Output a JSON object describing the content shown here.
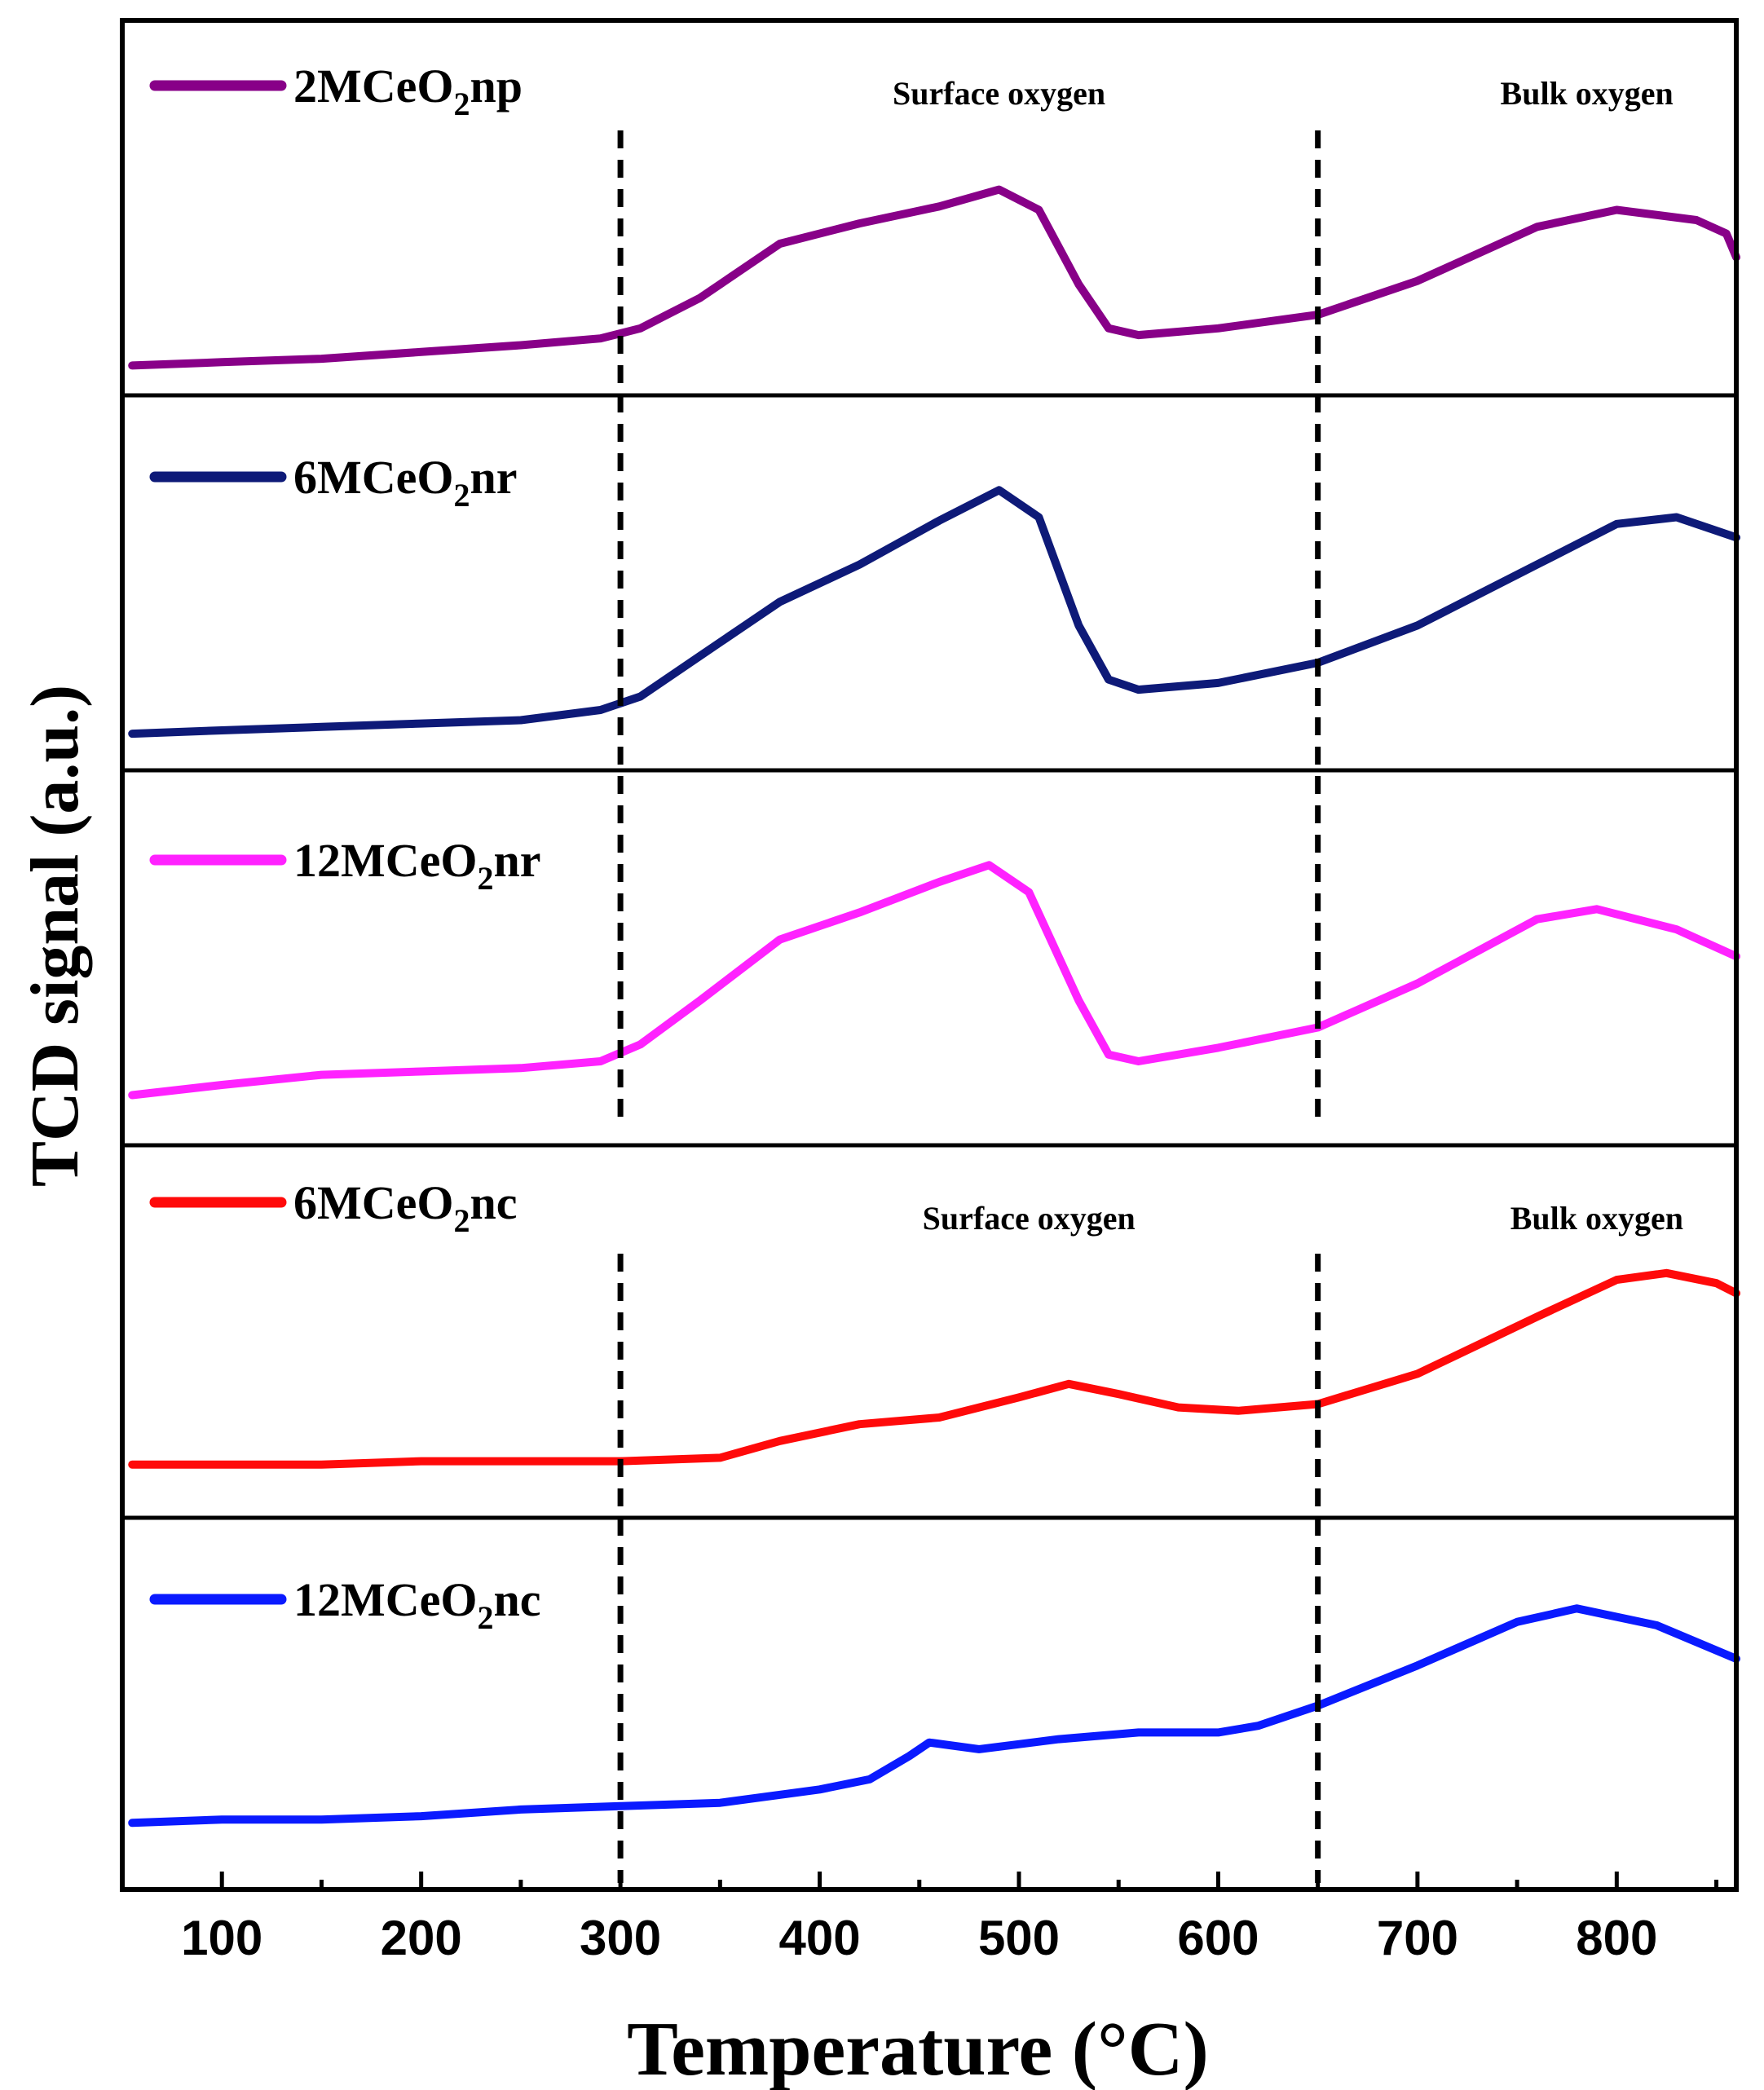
{
  "chart_data": {
    "type": "line",
    "layout": "stacked-panels",
    "xlabel": "Temperature (°C)",
    "ylabel": "TCD signal (a.u.)",
    "xlim": [
      50,
      860
    ],
    "xticks": [
      100,
      200,
      300,
      400,
      500,
      600,
      700,
      800
    ],
    "grid": false,
    "y_units": "arbitrary (normalized within each panel)",
    "vlines": [
      300,
      650
    ],
    "panels": [
      {
        "legend": {
          "prefix": "2MCeO",
          "sub": "2",
          "suffix": "np"
        },
        "color": "#880088",
        "annotations": [
          {
            "text": "Surface oxygen",
            "x": 490
          },
          {
            "text": "Bulk oxygen",
            "x": 785
          }
        ],
        "x": [
          55,
          100,
          150,
          200,
          250,
          290,
          310,
          340,
          380,
          420,
          460,
          490,
          510,
          530,
          545,
          560,
          600,
          650,
          700,
          760,
          800,
          840,
          855,
          860
        ],
        "y": [
          0.04,
          0.05,
          0.06,
          0.08,
          0.1,
          0.12,
          0.15,
          0.24,
          0.4,
          0.46,
          0.51,
          0.56,
          0.5,
          0.28,
          0.15,
          0.13,
          0.15,
          0.19,
          0.29,
          0.45,
          0.5,
          0.47,
          0.43,
          0.36
        ]
      },
      {
        "legend": {
          "prefix": "6MCeO",
          "sub": "2",
          "suffix": "nr"
        },
        "color": "#0e1a78",
        "annotations": [],
        "x": [
          55,
          100,
          150,
          200,
          250,
          290,
          310,
          340,
          380,
          420,
          460,
          490,
          510,
          530,
          545,
          560,
          600,
          650,
          700,
          760,
          800,
          830,
          860
        ],
        "y": [
          0.06,
          0.07,
          0.08,
          0.09,
          0.1,
          0.13,
          0.17,
          0.29,
          0.45,
          0.56,
          0.69,
          0.78,
          0.7,
          0.38,
          0.22,
          0.19,
          0.21,
          0.27,
          0.38,
          0.56,
          0.68,
          0.7,
          0.64
        ]
      },
      {
        "legend": {
          "prefix": "12MCeO",
          "sub": "2",
          "suffix": "nr"
        },
        "color": "#ff22ff",
        "annotations": [],
        "x": [
          55,
          100,
          150,
          200,
          250,
          290,
          310,
          340,
          380,
          420,
          460,
          485,
          505,
          530,
          545,
          560,
          600,
          650,
          700,
          760,
          790,
          830,
          860
        ],
        "y": [
          0.1,
          0.13,
          0.16,
          0.17,
          0.18,
          0.2,
          0.25,
          0.38,
          0.56,
          0.64,
          0.73,
          0.78,
          0.7,
          0.38,
          0.22,
          0.2,
          0.24,
          0.3,
          0.43,
          0.62,
          0.65,
          0.59,
          0.51
        ]
      },
      {
        "legend": {
          "prefix": "6MCeO",
          "sub": "2",
          "suffix": "nc"
        },
        "color": "#ff0a0a",
        "annotations": [
          {
            "text": "Surface oxygen",
            "x": 505
          },
          {
            "text": "Bulk oxygen",
            "x": 790
          }
        ],
        "x": [
          55,
          100,
          150,
          200,
          250,
          300,
          350,
          380,
          420,
          460,
          500,
          525,
          550,
          580,
          610,
          650,
          700,
          760,
          800,
          825,
          850,
          860
        ],
        "y": [
          0.11,
          0.11,
          0.11,
          0.12,
          0.12,
          0.12,
          0.13,
          0.18,
          0.23,
          0.25,
          0.31,
          0.35,
          0.32,
          0.28,
          0.27,
          0.29,
          0.38,
          0.55,
          0.66,
          0.68,
          0.65,
          0.62
        ]
      },
      {
        "legend": {
          "prefix": "12MCeO",
          "sub": "2",
          "suffix": "nc"
        },
        "color": "#0a1aff",
        "annotations": [],
        "x": [
          55,
          100,
          150,
          200,
          250,
          300,
          350,
          400,
          425,
          445,
          455,
          480,
          520,
          560,
          600,
          620,
          650,
          700,
          750,
          780,
          820,
          860
        ],
        "y": [
          0.15,
          0.16,
          0.16,
          0.17,
          0.19,
          0.2,
          0.21,
          0.25,
          0.28,
          0.35,
          0.39,
          0.37,
          0.4,
          0.42,
          0.42,
          0.44,
          0.5,
          0.62,
          0.75,
          0.79,
          0.74,
          0.64
        ]
      }
    ]
  }
}
